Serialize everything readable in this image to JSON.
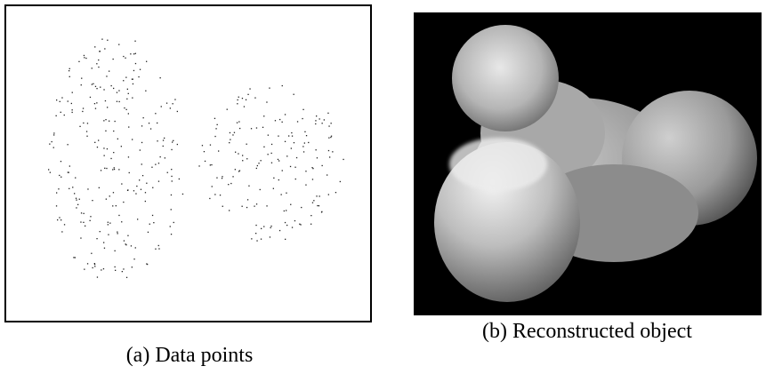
{
  "panels": [
    {
      "caption": "(a) Data points"
    },
    {
      "caption": "(b) Reconstructed object"
    }
  ]
}
